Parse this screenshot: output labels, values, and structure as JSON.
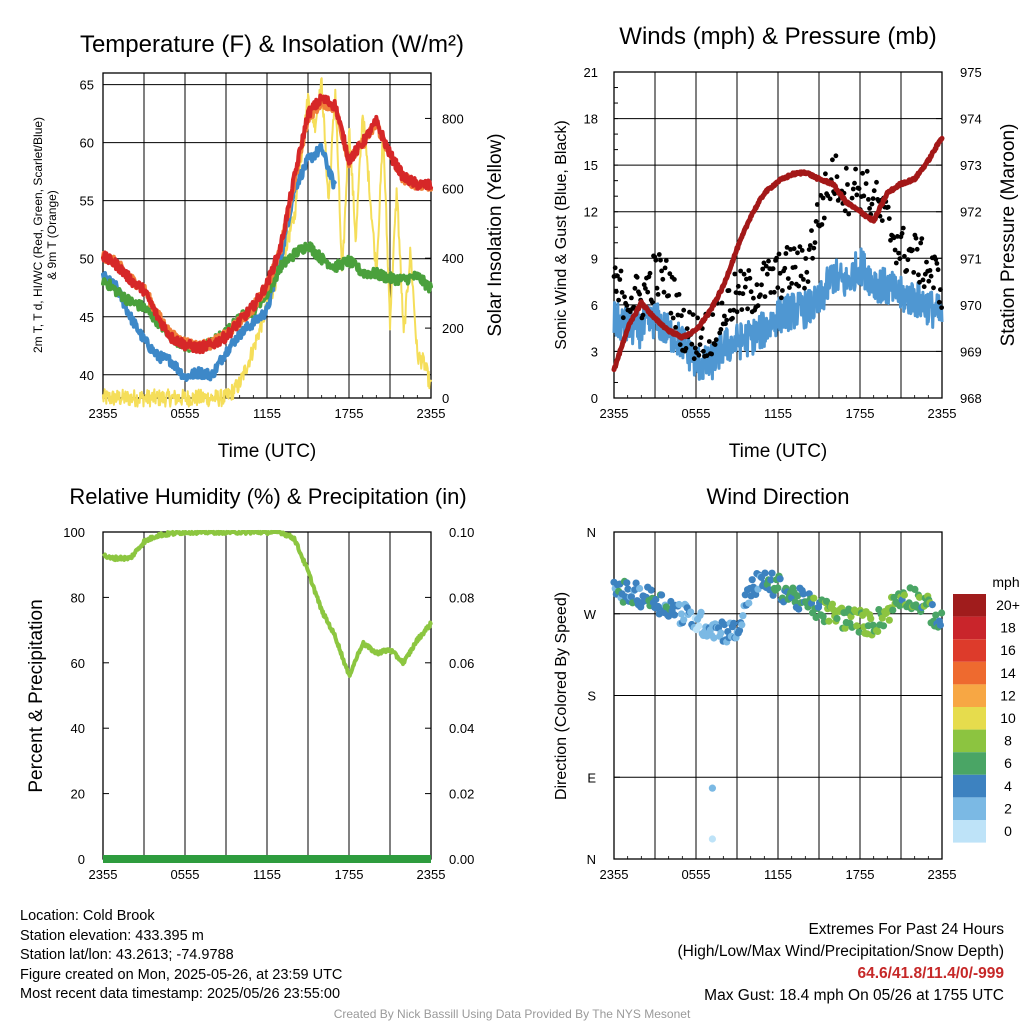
{
  "colors": {
    "temp2m": "#d62728",
    "dewpoint": "#4aa03c",
    "heat_index_wind_chill": "#3d88c8",
    "temp9m": "#f0803a",
    "solar": "#f5de5a",
    "wind": "#4f97d2",
    "gust": "#000000",
    "pressure": "#a31818",
    "rh": "#8cc640",
    "precip": "#2e9c3e"
  },
  "charts": [
    {
      "id": "temp",
      "type": "line",
      "title": "Temperature (F) & Insolation (W/m²)",
      "xlabel": "Time (UTC)",
      "ylabel": "2m T, T_d, HI/WC (Red, Green, Scarlet/Blue) & 9m T (Orange)",
      "ylabel_lines": [
        "2m T, T d, HI/WC (Red, Green, Scarlet/Blue)",
        "& 9m T (Orange)"
      ],
      "y2label": "Solar Insolation (Yellow)",
      "x_ticks": [
        "2355",
        "0555",
        "1155",
        "1755",
        "2355"
      ],
      "ylim": [
        38,
        66
      ],
      "y_ticks": [
        40,
        45,
        50,
        55,
        60,
        65
      ],
      "y2lim": [
        0,
        930
      ],
      "y2_ticks": [
        0,
        200,
        400,
        600,
        800
      ]
    },
    {
      "id": "wind",
      "type": "line",
      "title": "Winds (mph) & Pressure (mb)",
      "xlabel": "Time (UTC)",
      "ylabel": "Sonic Wind & Gust (Blue, Black)",
      "y2label": "Station Pressure (Maroon)",
      "x_ticks": [
        "2355",
        "0555",
        "1155",
        "1755",
        "2355"
      ],
      "ylim": [
        0,
        21
      ],
      "y_ticks": [
        0,
        3,
        6,
        9,
        12,
        15,
        18,
        21
      ],
      "y2lim": [
        968,
        975
      ],
      "y2_ticks": [
        968,
        969,
        970,
        971,
        972,
        973,
        974,
        975
      ]
    },
    {
      "id": "rh",
      "type": "line",
      "title": "Relative Humidity (%) & Precipitation (in)",
      "xlabel": "",
      "ylabel": "Percent & Precipitation",
      "x_ticks": [
        "2355",
        "0555",
        "1155",
        "1755",
        "2355"
      ],
      "ylim": [
        0,
        100
      ],
      "y_ticks": [
        0,
        20,
        40,
        60,
        80,
        100
      ],
      "y2lim": [
        0,
        0.1
      ],
      "y2_ticks": [
        "0.00",
        "0.02",
        "0.04",
        "0.06",
        "0.08",
        "0.10"
      ]
    },
    {
      "id": "dir",
      "type": "scatter",
      "title": "Wind Direction",
      "xlabel": "",
      "ylabel": "Direction (Colored By Speed)",
      "x_ticks": [
        "2355",
        "0555",
        "1155",
        "1755",
        "2355"
      ],
      "y_ticks": [
        "N",
        "E",
        "S",
        "W",
        "N"
      ],
      "legend": {
        "title": "mph",
        "labels": [
          "20+",
          "18",
          "16",
          "14",
          "12",
          "10",
          "8",
          "6",
          "4",
          "2",
          "0"
        ],
        "colors": [
          "#a01c1c",
          "#c9252b",
          "#dd3b2b",
          "#ee6a2f",
          "#f7a744",
          "#e6dc4d",
          "#8cc440",
          "#4aa565",
          "#3d82c0",
          "#7bb9e4",
          "#bee3f8"
        ]
      }
    }
  ],
  "chart_data": [
    {
      "type": "line",
      "x_hours_since_start": true,
      "series": [
        {
          "name": "2m T",
          "color": "#d62728",
          "x": [
            0,
            1,
            2,
            3,
            4,
            5,
            6,
            7,
            8,
            9,
            10,
            11,
            12,
            13,
            14,
            15,
            16,
            17,
            18,
            19,
            20,
            21,
            22,
            23,
            24
          ],
          "values": [
            50.2,
            49.5,
            48.2,
            47.3,
            45,
            43.2,
            42.6,
            42.3,
            42.6,
            43.3,
            44.6,
            45.9,
            47.8,
            51,
            57,
            62.5,
            63.8,
            63.2,
            58.5,
            60,
            61.8,
            59,
            57,
            56.4,
            56.3
          ]
        },
        {
          "name": "T_d",
          "color": "#4aa03c",
          "x": [
            0,
            1,
            2,
            3,
            4,
            5,
            6,
            7,
            8,
            9,
            10,
            11,
            12,
            13,
            14,
            15,
            16,
            17,
            18,
            19,
            20,
            21,
            22,
            23,
            24
          ],
          "values": [
            48.2,
            47.2,
            46.3,
            45.8,
            44.6,
            43.3,
            42.5,
            42.3,
            42.8,
            43.6,
            44.9,
            45.6,
            47,
            49.3,
            50.4,
            51.2,
            50,
            49.3,
            49.8,
            48.8,
            48.7,
            48.3,
            48.2,
            48.5,
            47.4
          ]
        },
        {
          "name": "HI/WC",
          "color": "#3d88c8",
          "x": [
            0,
            1,
            2,
            3,
            4,
            5,
            6,
            7,
            8,
            9,
            10,
            11,
            12,
            13,
            14,
            15,
            16,
            17,
            18,
            19,
            20,
            21,
            22,
            23,
            24
          ],
          "values": [
            48.5,
            47.5,
            45,
            43,
            41.6,
            41.2,
            39.8,
            40.2,
            40,
            42,
            43.5,
            44.5,
            45.5,
            50,
            56,
            58.5,
            59.5,
            56,
            null,
            null,
            null,
            null,
            null,
            null,
            null
          ]
        },
        {
          "name": "9m T",
          "color": "#f0803a",
          "x": [
            0,
            1,
            2,
            3,
            4,
            5,
            6,
            7,
            8,
            9,
            10,
            11,
            12,
            13,
            14,
            15,
            16,
            17,
            18,
            19,
            20,
            21,
            22,
            23,
            24
          ],
          "values": [
            50.3,
            49.6,
            48.3,
            47.4,
            45.2,
            43.4,
            42.8,
            42.4,
            42.7,
            43.4,
            44.6,
            45.8,
            47.7,
            50.8,
            56.6,
            62.2,
            63.5,
            63,
            58.4,
            59.9,
            61.6,
            58.9,
            56.9,
            56.4,
            56.3
          ]
        },
        {
          "name": "Solar",
          "color": "#f5de5a",
          "axis": "right",
          "x": [
            0,
            1,
            2,
            3,
            4,
            5,
            6,
            7,
            8,
            9,
            10,
            11,
            12,
            13,
            14,
            15,
            15.5,
            16,
            16.5,
            17,
            17.5,
            18,
            18.5,
            19,
            19.5,
            20,
            20.5,
            21,
            21.5,
            22,
            22.5,
            23,
            23.5,
            24
          ],
          "values": [
            0,
            0,
            0,
            0,
            0,
            0,
            0,
            0,
            0,
            0,
            40,
            140,
            260,
            380,
            520,
            860,
            780,
            900,
            560,
            880,
            340,
            780,
            450,
            820,
            600,
            360,
            760,
            220,
            600,
            180,
            420,
            120,
            100,
            30
          ]
        }
      ]
    },
    {
      "type": "line",
      "series": [
        {
          "name": "Sonic Wind",
          "color": "#4f97d2",
          "x": [
            0,
            1,
            2,
            3,
            4,
            5,
            6,
            7,
            8,
            9,
            10,
            11,
            12,
            13,
            14,
            15,
            16,
            17,
            18,
            19,
            20,
            21,
            22,
            23,
            24
          ],
          "values": [
            5,
            4.6,
            4.4,
            5.1,
            4.2,
            3.6,
            2.3,
            2.1,
            3.3,
            3.6,
            3.9,
            4.4,
            5.3,
            5.6,
            5.7,
            6.1,
            7.9,
            7.4,
            8.6,
            7.5,
            7.1,
            6.6,
            6.4,
            5.9,
            5.3
          ]
        },
        {
          "name": "Gust",
          "color": "#000000",
          "x": [
            0,
            1,
            2,
            3,
            4,
            5,
            6,
            7,
            8,
            9,
            10,
            11,
            12,
            13,
            14,
            15,
            16,
            17,
            18,
            19,
            20,
            21,
            22,
            23,
            24
          ],
          "values": [
            7,
            6.6,
            6.4,
            8,
            7.4,
            4.6,
            3.9,
            4.2,
            5.5,
            6.6,
            6.8,
            7.4,
            7.8,
            8.4,
            8.2,
            11.8,
            14.4,
            13.4,
            13.6,
            12.7,
            11.3,
            9.6,
            9.1,
            8.3,
            7.3
          ]
        },
        {
          "name": "Pressure",
          "color": "#a31818",
          "axis": "right",
          "x": [
            0,
            1,
            2,
            3,
            4,
            5,
            6,
            7,
            8,
            9,
            10,
            11,
            12,
            13,
            14,
            15,
            16,
            17,
            18,
            19,
            20,
            21,
            22,
            23,
            24
          ],
          "values": [
            968.6,
            969.5,
            970.05,
            969.7,
            969.45,
            969.3,
            969.45,
            969.85,
            970.4,
            971.2,
            971.9,
            972.4,
            972.65,
            972.8,
            972.85,
            972.7,
            972.6,
            972.2,
            972.0,
            971.8,
            972.4,
            972.6,
            972.7,
            973.1,
            973.6
          ]
        }
      ]
    },
    {
      "type": "line",
      "series": [
        {
          "name": "RH",
          "color": "#8cc640",
          "x": [
            0,
            0.5,
            1,
            2,
            3,
            4,
            5,
            6,
            7,
            8,
            9,
            10,
            11,
            12,
            13,
            14,
            15,
            16,
            17,
            18,
            19,
            20,
            21,
            22,
            23,
            24
          ],
          "values": [
            93,
            92,
            92,
            92,
            97,
            99,
            99.5,
            100,
            100,
            100,
            100,
            100,
            100,
            100,
            100,
            98,
            88,
            76,
            68,
            56,
            66,
            63,
            64,
            60,
            67,
            72
          ]
        },
        {
          "name": "Precipitation",
          "color": "#2e9c3e",
          "axis": "right",
          "x": [
            0,
            24
          ],
          "values": [
            0,
            0
          ]
        }
      ]
    },
    {
      "type": "scatter",
      "directions_deg_by_hour": [
        300,
        292,
        290,
        285,
        278,
        270,
        262,
        255,
        252,
        248,
        300,
        305,
        300,
        290,
        282,
        275,
        270,
        265,
        262,
        258,
        272,
        290,
        288,
        276,
        258
      ],
      "speed_mph_by_hour": [
        4,
        4,
        4,
        5,
        4,
        3,
        2,
        2,
        3,
        3,
        4,
        4,
        5,
        5,
        5,
        6,
        8,
        7,
        8,
        7,
        7,
        6,
        6,
        6,
        5
      ]
    }
  ],
  "info": {
    "location": "Location: Cold Brook",
    "elevation": "Station elevation: 433.395 m",
    "latlon": "Station lat/lon: 43.2613; -74.9788",
    "created": "Figure created on Mon, 2025-05-26, at 23:59 UTC",
    "recent": "Most recent data timestamp: 2025/05/26 23:55:00"
  },
  "extremes": {
    "title": "Extremes For Past 24 Hours",
    "subtitle": "(High/Low/Max Wind/Precipitation/Snow Depth)",
    "values": "64.6/41.8/11.4/0/-999",
    "max_gust": "Max Gust: 18.4 mph On 05/26 at 1755 UTC"
  },
  "credit": "Created By Nick Bassill Using Data Provided By The NYS Mesonet"
}
